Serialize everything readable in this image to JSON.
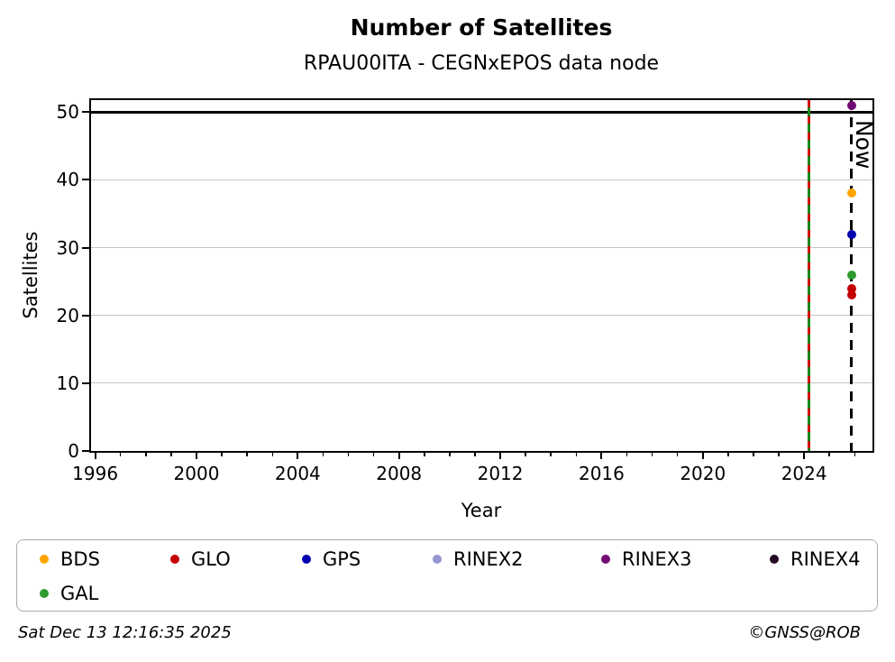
{
  "title": "Number of Satellites",
  "subtitle": "RPAU00ITA - CEGNxEPOS data node",
  "footer": {
    "timestamp": "Sat Dec 13 12:16:35 2025",
    "credit": "©GNSS@ROB"
  },
  "now_label": "Now",
  "chart_data": {
    "type": "scatter",
    "title": "Number of Satellites",
    "subtitle": "RPAU00ITA - CEGNxEPOS data node",
    "xlabel": "Year",
    "ylabel": "Satellites",
    "xlim": [
      1995.8,
      2026.7
    ],
    "ylim": [
      0,
      51.9
    ],
    "x_major_ticks": [
      1996,
      2000,
      2004,
      2008,
      2012,
      2016,
      2020,
      2024
    ],
    "x_minor_step_years": 1,
    "y_ticks": [
      0,
      10,
      20,
      30,
      40,
      50
    ],
    "grid": "horizontal gray lines at y ticks",
    "grid_color": "#c6c6c6",
    "hline": {
      "y": 50,
      "color": "#000000",
      "style": "solid"
    },
    "event_line": {
      "x": 2024.2,
      "base_color": "#178717",
      "dash_color": "#d40000",
      "style": "solid green with red dashes",
      "note": "receiver/antenna change marker"
    },
    "now_line": {
      "x": 2025.87,
      "label": "Now",
      "color": "#000000",
      "style": "dashed"
    },
    "legend_position": "bottom",
    "series": [
      {
        "name": "BDS",
        "color": "#ffa500",
        "points": [
          {
            "x": 2025.87,
            "y": 38
          }
        ]
      },
      {
        "name": "GLO",
        "color": "#c40000",
        "points": [
          {
            "x": 2025.87,
            "y": 24
          },
          {
            "x": 2025.87,
            "y": 23
          }
        ]
      },
      {
        "name": "GPS",
        "color": "#0000b0",
        "points": [
          {
            "x": 2025.87,
            "y": 32
          }
        ]
      },
      {
        "name": "RINEX2",
        "color": "#9595d2",
        "points": []
      },
      {
        "name": "RINEX3",
        "color": "#740b74",
        "points": [
          {
            "x": 2025.87,
            "y": 51
          }
        ]
      },
      {
        "name": "RINEX4",
        "color": "#250a25",
        "points": []
      },
      {
        "name": "GAL",
        "color": "#2e9b2e",
        "points": [
          {
            "x": 2025.87,
            "y": 26
          }
        ]
      }
    ]
  }
}
